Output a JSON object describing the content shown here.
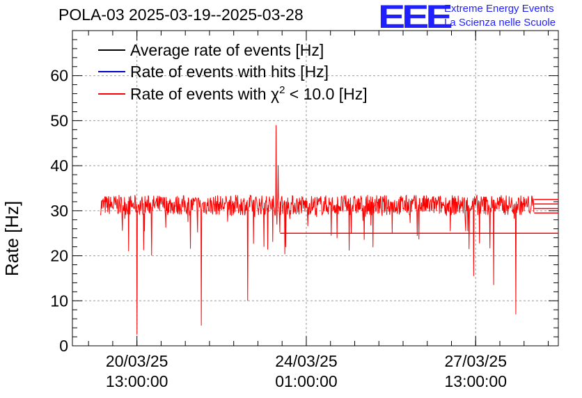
{
  "header": {
    "title": "POLA-03 2025-03-19--2025-03-28",
    "logo_text": "EEE",
    "logo_line1": "Extreme Energy Events",
    "logo_line2": "La Scienza nelle Scuole"
  },
  "colors": {
    "average": "#000000",
    "hits": "#0000cc",
    "chi2": "#ff0000",
    "logo": "#1f1fff"
  },
  "chart_data": {
    "type": "line",
    "title": "POLA-03 2025-03-19--2025-03-28",
    "xlabel": "",
    "ylabel": "Rate [Hz]",
    "ylim": [
      0,
      70
    ],
    "yticks": [
      0,
      10,
      20,
      30,
      40,
      50,
      60
    ],
    "xlim": [
      "2025-03-19 05:00",
      "2025-03-29 06:00"
    ],
    "xticks": [
      {
        "date": "20/03/25",
        "time": "13:00:00"
      },
      {
        "date": "24/03/25",
        "time": "01:00:00"
      },
      {
        "date": "27/03/25",
        "time": "13:00:00"
      }
    ],
    "grid": true,
    "legend_position": "top-left",
    "series": [
      {
        "name": "Average rate of events [Hz]",
        "color": "#000000",
        "visible_overlap": true
      },
      {
        "name": "Rate of events with hits [Hz]",
        "color": "#0000cc",
        "visible_overlap": true
      },
      {
        "name": "Rate of events with χ² < 10.0 [Hz]",
        "legend_main": "Rate of events with χ",
        "legend_sup": "2",
        "legend_tail": " < 10.0 [Hz]",
        "color": "#ff0000",
        "baseline_range": [
          29,
          33.5
        ],
        "start": "2025-03-19 19:00",
        "end": "2025-03-28 18:00",
        "notable_points": [
          {
            "x": "2025-03-20 13:00",
            "y": 2.5
          },
          {
            "x": "2025-03-21 21:00",
            "y": 4.5
          },
          {
            "x": "2025-03-22 20:00",
            "y": 10
          },
          {
            "x": "2025-03-23 10:00",
            "y": 49
          },
          {
            "x": "2025-03-23 11:00",
            "y": 40
          },
          {
            "x": "2025-03-27 12:00",
            "y": 15.5
          },
          {
            "x": "2025-03-27 22:00",
            "y": 13.5
          },
          {
            "x": "2025-03-28 09:00",
            "y": 7
          }
        ]
      }
    ]
  }
}
